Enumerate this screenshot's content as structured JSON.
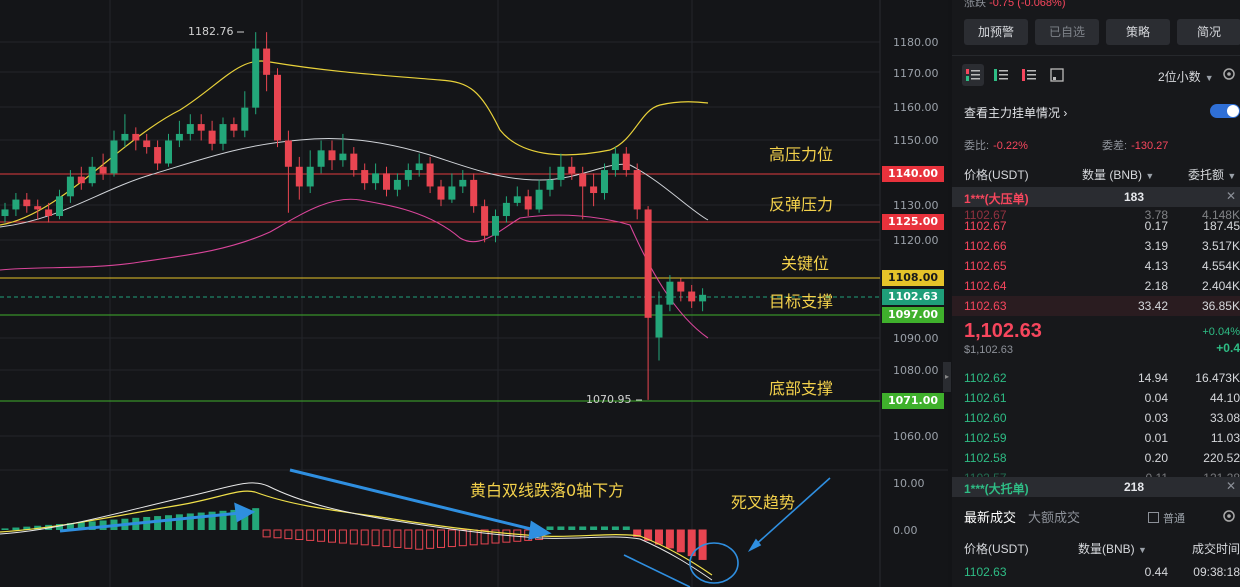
{
  "chart": {
    "price_axis": [
      "1180.00",
      "1170.00",
      "1160.00",
      "1150.00",
      "1130.00",
      "1120.00",
      "1090.00",
      "1080.00",
      "1060.00"
    ],
    "indicator_axis": [
      "10.00",
      "0.00"
    ],
    "level_boxes": [
      {
        "value": "1140.00",
        "color": "#e8323c"
      },
      {
        "value": "1125.00",
        "color": "#e8323c"
      },
      {
        "value": "1108.00",
        "color": "#e6c329",
        "text_color": "#1a1a1a"
      },
      {
        "value": "1102.63",
        "color": "#1f9f7a"
      },
      {
        "value": "1097.00",
        "color": "#3fb02c"
      },
      {
        "value": "1071.00",
        "color": "#3fb02c"
      }
    ],
    "high_label": "1182.76",
    "low_label": "1070.95",
    "annotations": {
      "high_resistance": "高压力位",
      "rebound_resistance": "反弹压力",
      "key_level": "关键位",
      "target_support": "目标支撑",
      "bottom_support": "底部支撑",
      "macd_note": "黄白双线跌落0轴下方",
      "death_cross": "死叉趋势"
    }
  },
  "panel": {
    "topline_label": "涨跌",
    "topline_value": "-0.75 (-0.068%)",
    "buttons": [
      "加预警",
      "已自选",
      "策略",
      "简况"
    ],
    "decimal_select": "2位小数",
    "depth_toggle_label": "查看主力挂单情况",
    "ratio_label": "委比:",
    "ratio_value": "-0.22%",
    "diff_label": "委差:",
    "diff_value": "-130.27",
    "headers": {
      "price": "价格(USDT)",
      "qty": "数量 (BNB)",
      "total": "委托额"
    },
    "ask_band": {
      "label": "1***(大压单)",
      "qty": "183"
    },
    "asks": [
      {
        "p": "1102.67",
        "q": "0.17",
        "t": "187.45"
      },
      {
        "p": "1102.66",
        "q": "3.19",
        "t": "3.517K"
      },
      {
        "p": "1102.65",
        "q": "4.13",
        "t": "4.554K"
      },
      {
        "p": "1102.64",
        "q": "2.18",
        "t": "2.404K"
      },
      {
        "p": "1102.63",
        "q": "33.42",
        "t": "36.85K"
      }
    ],
    "current_price": "1,102.63",
    "current_sub": "$1,102.63",
    "change_pct": "+0.04%",
    "change_abs": "+0.4",
    "bids": [
      {
        "p": "1102.62",
        "q": "14.94",
        "t": "16.473K"
      },
      {
        "p": "1102.61",
        "q": "0.04",
        "t": "44.10"
      },
      {
        "p": "1102.60",
        "q": "0.03",
        "t": "33.08"
      },
      {
        "p": "1102.59",
        "q": "0.01",
        "t": "11.03"
      },
      {
        "p": "1102.58",
        "q": "0.20",
        "t": "220.52"
      }
    ],
    "bid_band": {
      "label": "1***(大托单)",
      "qty": "218"
    },
    "trades_tab": "最新成交",
    "big_trades_tab": "大额成交",
    "normal_check": "普通",
    "trade_headers": {
      "price": "价格(USDT)",
      "qty": "数量(BNB)",
      "time": "成交时间"
    },
    "trade_row": {
      "p": "1102.63",
      "q": "0.44",
      "t": "09:38:18"
    }
  }
}
